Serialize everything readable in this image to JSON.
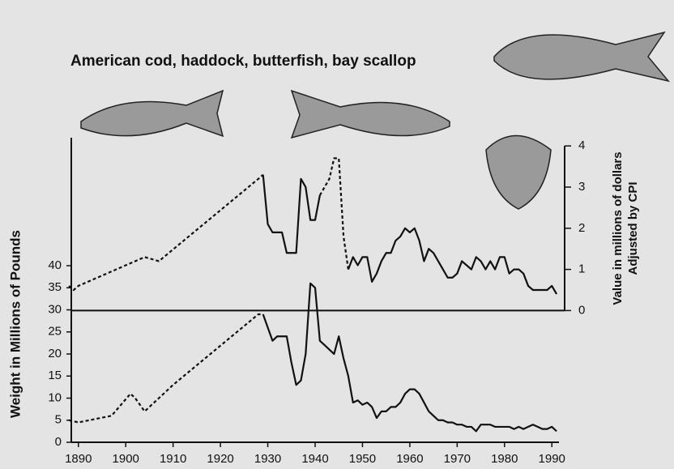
{
  "chart_data": {
    "type": "line",
    "title": "American cod, haddock, butterfish, bay scallop",
    "y_label": "Weight in Millions of Pounds",
    "y2_label": [
      "Value in millions of dollars",
      "Adjusted by CPI"
    ],
    "xlim": [
      1888.5,
      1991.5
    ],
    "xticks": [
      1890,
      1900,
      1910,
      1920,
      1930,
      1940,
      1950,
      1960,
      1970,
      1980,
      1990
    ],
    "ylim": [
      0,
      69
    ],
    "yticks": [
      0,
      5,
      10,
      15,
      20,
      25,
      30,
      35,
      40
    ],
    "y2lim": [
      -3.2,
      4.2
    ],
    "y2ticks": [
      0,
      1,
      2,
      3,
      4
    ],
    "series": [
      {
        "color": "#111111",
        "dashed": true,
        "x": [
          1888,
          1890,
          1897,
          1901,
          1902,
          1904,
          1907,
          1910,
          1928,
          1929
        ],
        "values": [
          5,
          4.5,
          6,
          11,
          10,
          7,
          10,
          13,
          29,
          29
        ]
      },
      {
        "color": "#111111",
        "dashed": false,
        "x": [
          1929,
          1930,
          1931,
          1932,
          1934,
          1935,
          1936,
          1937,
          1938,
          1939,
          1940,
          1941,
          1942,
          1943,
          1944,
          1945,
          1946,
          1947,
          1948,
          1949,
          1950,
          1951,
          1952,
          1953,
          1954,
          1955,
          1956,
          1957,
          1958,
          1959,
          1960,
          1961,
          1962,
          1963,
          1964,
          1965,
          1966,
          1967,
          1968,
          1969,
          1970,
          1971,
          1972,
          1973,
          1974,
          1975,
          1976,
          1977,
          1978,
          1979,
          1980,
          1981,
          1982,
          1983,
          1984,
          1985,
          1986,
          1987,
          1988,
          1989,
          1990,
          1991
        ],
        "values": [
          29,
          26,
          23,
          24,
          24,
          18,
          13,
          14,
          20,
          36,
          35,
          23,
          22,
          21,
          20,
          24,
          19,
          15,
          9,
          9.5,
          8.5,
          9,
          8,
          5.5,
          7,
          7,
          8,
          8,
          9,
          11,
          12,
          12,
          11,
          9,
          7,
          6,
          5,
          5,
          4.5,
          4.5,
          4,
          4,
          3.5,
          3.5,
          2.5,
          4,
          4,
          4,
          3.5,
          3.5,
          3.5,
          3.5,
          3,
          3.5,
          3,
          3.5,
          4,
          3.5,
          3,
          3,
          3.5,
          2.5
        ]
      },
      {
        "color": "#111111",
        "dashed": true,
        "axis": "y2",
        "x": [
          1888,
          1889,
          1890,
          1904,
          1907,
          1928,
          1929
        ],
        "values": [
          0.6,
          0.5,
          0.6,
          1.3,
          1.2,
          3.2,
          3.3
        ]
      },
      {
        "color": "#111111",
        "dashed": false,
        "axis": "y2",
        "x": [
          1929,
          1930,
          1931,
          1932,
          1933,
          1934,
          1935,
          1936,
          1937,
          1938,
          1939,
          1940,
          1941
        ],
        "values": [
          3.3,
          2.1,
          1.9,
          1.9,
          1.9,
          1.4,
          1.4,
          1.4,
          3.2,
          3.0,
          2.2,
          2.2,
          2.8
        ]
      },
      {
        "color": "#111111",
        "dashed": true,
        "axis": "y2",
        "x": [
          1941,
          1942,
          1943,
          1944,
          1945,
          1946,
          1947
        ],
        "values": [
          2.8,
          3.0,
          3.2,
          3.7,
          3.7,
          1.8,
          1.0
        ]
      },
      {
        "color": "#111111",
        "dashed": false,
        "axis": "y2",
        "x": [
          1947,
          1948,
          1949,
          1950,
          1951,
          1952,
          1953,
          1954,
          1955,
          1956,
          1957,
          1958,
          1959,
          1960,
          1961,
          1962,
          1963,
          1964,
          1965,
          1966,
          1967,
          1968,
          1969,
          1970,
          1971,
          1972,
          1973,
          1974,
          1975,
          1976,
          1977,
          1978,
          1979,
          1980,
          1981,
          1982,
          1983,
          1984,
          1985,
          1986,
          1987,
          1988,
          1989,
          1990,
          1991
        ],
        "values": [
          1.0,
          1.3,
          1.1,
          1.3,
          1.3,
          0.7,
          0.9,
          1.2,
          1.4,
          1.4,
          1.7,
          1.8,
          2.0,
          1.9,
          2.0,
          1.7,
          1.2,
          1.5,
          1.4,
          1.2,
          1.0,
          0.8,
          0.8,
          0.9,
          1.2,
          1.1,
          1.0,
          1.3,
          1.2,
          1.0,
          1.2,
          1.0,
          1.3,
          1.3,
          0.9,
          1.0,
          1.0,
          0.9,
          0.6,
          0.5,
          0.5,
          0.5,
          0.5,
          0.6,
          0.4
        ]
      }
    ]
  }
}
